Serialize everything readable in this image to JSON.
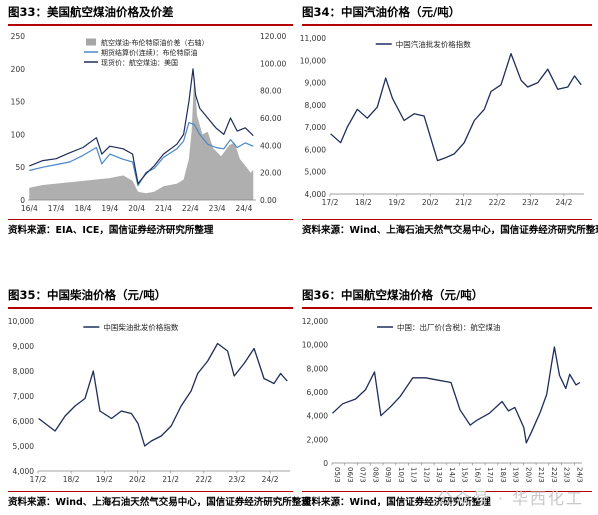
{
  "figures": [
    {
      "title": "图33：美国航空煤油价格及价差",
      "source": "资料来源：EIA、ICE，国信证券经济研究所整理"
    },
    {
      "title": "图34：中国汽油价格（元/吨）",
      "source": "资料来源：Wind、上海石油天然气交易中心，国信证券经济研究所整理"
    },
    {
      "title": "图35：中国柴油价格（元/吨）",
      "source": "资料来源：Wind、上海石油天然气交易中心，国信证券经济研究所整理"
    },
    {
      "title": "图36：中国航空煤油价格（元/吨）",
      "source": "资料来源：Wind，国信证券经济研究所整理"
    }
  ],
  "watermark": "公众号 · 华西化工",
  "colors": {
    "dark": "#1f2d5a",
    "blue": "#4a86c8",
    "gray": "#a6a6a6",
    "red": "#b30000"
  },
  "chart_data": [
    {
      "type": "line",
      "xticks": [
        "16/4",
        "17/4",
        "18/4",
        "19/4",
        "20/4",
        "21/4",
        "22/4",
        "23/4",
        "24/4"
      ],
      "y_left": {
        "lim": [
          0,
          250
        ],
        "ticks": [
          "0",
          "50",
          "100",
          "150",
          "200",
          "250"
        ]
      },
      "y_right": {
        "lim": [
          0,
          120
        ],
        "ticks": [
          "0.00",
          "20.00",
          "40.00",
          "60.00",
          "80.00",
          "100.00",
          "120.00"
        ]
      },
      "legend_position": "top-center",
      "series": [
        {
          "name": "航空煤油-布伦特原油价差（右轴）",
          "kind": "area",
          "axis": "right",
          "x": [
            2016.25,
            2016.75,
            2017.25,
            2017.75,
            2018.25,
            2018.75,
            2019.25,
            2019.75,
            2020.1,
            2020.3,
            2020.6,
            2020.9,
            2021.25,
            2021.75,
            2022.0,
            2022.2,
            2022.3,
            2022.4,
            2022.5,
            2022.7,
            2022.9,
            2023.1,
            2023.4,
            2023.7,
            2023.9,
            2024.1,
            2024.3,
            2024.5,
            2024.6
          ],
          "values": [
            9,
            11,
            12,
            13,
            14,
            15,
            16,
            18,
            14,
            6,
            5,
            6,
            10,
            12,
            15,
            30,
            50,
            92,
            62,
            48,
            50,
            38,
            32,
            40,
            42,
            30,
            25,
            20,
            22
          ]
        },
        {
          "name": "期货结算价(连续)：布伦特原油",
          "kind": "line",
          "axis": "left",
          "x": [
            2016.25,
            2016.75,
            2017.25,
            2017.75,
            2018.25,
            2018.75,
            2018.95,
            2019.25,
            2019.75,
            2020.1,
            2020.3,
            2020.6,
            2020.9,
            2021.25,
            2021.75,
            2022.0,
            2022.2,
            2022.4,
            2022.6,
            2022.9,
            2023.2,
            2023.5,
            2023.75,
            2024.0,
            2024.3,
            2024.6
          ],
          "values": [
            45,
            50,
            54,
            58,
            68,
            80,
            55,
            70,
            62,
            58,
            22,
            42,
            48,
            65,
            78,
            90,
            118,
            115,
            100,
            85,
            80,
            78,
            92,
            80,
            87,
            82
          ]
        },
        {
          "name": "现货价：航空煤油：美国",
          "kind": "line",
          "axis": "left",
          "x": [
            2016.25,
            2016.75,
            2017.25,
            2017.75,
            2018.25,
            2018.75,
            2018.95,
            2019.25,
            2019.75,
            2020.1,
            2020.3,
            2020.6,
            2020.9,
            2021.25,
            2021.75,
            2022.0,
            2022.2,
            2022.35,
            2022.45,
            2022.6,
            2022.9,
            2023.2,
            2023.5,
            2023.75,
            2024.0,
            2024.3,
            2024.6
          ],
          "values": [
            52,
            60,
            63,
            72,
            80,
            95,
            70,
            82,
            78,
            70,
            25,
            40,
            52,
            70,
            85,
            100,
            150,
            200,
            160,
            140,
            125,
            110,
            100,
            125,
            105,
            110,
            98
          ]
        }
      ]
    },
    {
      "type": "line",
      "xticks": [
        "17/2",
        "18/2",
        "19/2",
        "20/2",
        "21/2",
        "22/2",
        "23/2",
        "24/2"
      ],
      "ylim": [
        4000,
        11000
      ],
      "yticks": [
        "4,000",
        "5,000",
        "6,000",
        "7,000",
        "8,000",
        "9,000",
        "10,000",
        "11,000"
      ],
      "legend_position": "top-center",
      "series": [
        {
          "name": "中国汽油批发价格指数",
          "x": [
            2017.1,
            2017.4,
            2017.6,
            2017.9,
            2018.2,
            2018.5,
            2018.75,
            2018.95,
            2019.3,
            2019.6,
            2019.9,
            2020.1,
            2020.3,
            2020.5,
            2020.8,
            2021.1,
            2021.4,
            2021.7,
            2021.9,
            2022.2,
            2022.5,
            2022.8,
            2023.0,
            2023.3,
            2023.6,
            2023.9,
            2024.2,
            2024.4,
            2024.6
          ],
          "values": [
            6700,
            6300,
            7000,
            7800,
            7400,
            7900,
            9200,
            8300,
            7300,
            7600,
            7500,
            6500,
            5500,
            5600,
            5800,
            6300,
            7300,
            7800,
            8600,
            8900,
            10300,
            9100,
            8800,
            9000,
            9600,
            8700,
            8800,
            9300,
            8900
          ]
        }
      ]
    },
    {
      "type": "line",
      "xticks": [
        "17/2",
        "18/2",
        "19/2",
        "20/2",
        "21/2",
        "22/2",
        "23/2",
        "24/2"
      ],
      "ylim": [
        4000,
        10000
      ],
      "yticks": [
        "4,000",
        "5,000",
        "6,000",
        "7,000",
        "8,000",
        "9,000",
        "10,000"
      ],
      "legend_position": "top-center",
      "series": [
        {
          "name": "中国柴油批发价格指数",
          "x": [
            2017.1,
            2017.4,
            2017.6,
            2017.9,
            2018.2,
            2018.5,
            2018.75,
            2018.95,
            2019.3,
            2019.6,
            2019.9,
            2020.1,
            2020.3,
            2020.5,
            2020.8,
            2021.1,
            2021.4,
            2021.7,
            2021.9,
            2022.2,
            2022.5,
            2022.8,
            2023.0,
            2023.3,
            2023.6,
            2023.9,
            2024.2,
            2024.4,
            2024.6
          ],
          "values": [
            6100,
            5800,
            5600,
            6200,
            6600,
            6900,
            8000,
            6400,
            6100,
            6400,
            6300,
            5900,
            5000,
            5200,
            5400,
            5800,
            6600,
            7200,
            7900,
            8400,
            9100,
            8800,
            7800,
            8300,
            8900,
            7700,
            7500,
            7900,
            7600
          ]
        }
      ]
    },
    {
      "type": "line",
      "xticks": [
        "05/3",
        "06/3",
        "07/3",
        "08/3",
        "09/3",
        "10/3",
        "11/3",
        "12/3",
        "13/3",
        "14/3",
        "15/3",
        "16/3",
        "17/3",
        "18/3",
        "19/3",
        "20/3",
        "21/3",
        "22/3",
        "23/3",
        "24/3"
      ],
      "ylim": [
        0,
        12000
      ],
      "yticks": [
        "0",
        "2,000",
        "4,000",
        "6,000",
        "8,000",
        "10,000",
        "12,000"
      ],
      "legend_position": "top-center",
      "series": [
        {
          "name": "中国：出厂价(含税)：航空煤油",
          "x": [
            2005.2,
            2006.0,
            2007.0,
            2007.8,
            2008.5,
            2009.0,
            2009.8,
            2010.5,
            2011.5,
            2012.5,
            2013.5,
            2014.5,
            2015.2,
            2016.0,
            2016.5,
            2017.5,
            2018.5,
            2019.0,
            2019.5,
            2020.2,
            2020.4,
            2020.8,
            2021.5,
            2022.0,
            2022.4,
            2022.6,
            2023.0,
            2023.5,
            2023.8,
            2024.3,
            2024.6
          ],
          "values": [
            4200,
            5000,
            5400,
            6200,
            7700,
            4000,
            4800,
            5600,
            7200,
            7200,
            7000,
            6800,
            4500,
            3200,
            3600,
            4200,
            5200,
            4400,
            4700,
            3000,
            1700,
            2600,
            4300,
            5800,
            8500,
            9800,
            7400,
            6300,
            7500,
            6600,
            6800
          ]
        }
      ]
    }
  ]
}
